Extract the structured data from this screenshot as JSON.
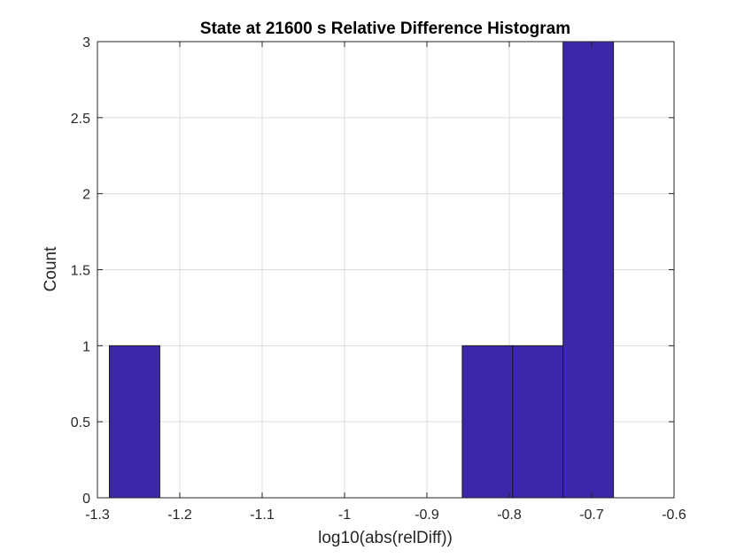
{
  "chart_data": {
    "type": "bar",
    "title": "State at 21600 s Relative Difference Histogram",
    "xlabel": "log10(abs(relDiff))",
    "ylabel": "Count",
    "xlim": [
      -1.3,
      -0.6
    ],
    "ylim": [
      0,
      3
    ],
    "xticks": [
      "-1.3",
      "-1.2",
      "-1.1",
      "-1",
      "-0.9",
      "-0.8",
      "-0.7",
      "-0.6"
    ],
    "yticks": [
      "0",
      "0.5",
      "1",
      "1.5",
      "2",
      "2.5",
      "3"
    ],
    "grid": true,
    "bar_color": "#3b28a8",
    "bin_edges": [
      -1.2855,
      -1.2243,
      -1.1631,
      -1.1019,
      -1.0407,
      -0.9795,
      -0.9183,
      -0.8571,
      -0.7959,
      -0.7347,
      -0.6735
    ],
    "counts": [
      1,
      0,
      0,
      0,
      0,
      0,
      0,
      1,
      1,
      3
    ]
  }
}
